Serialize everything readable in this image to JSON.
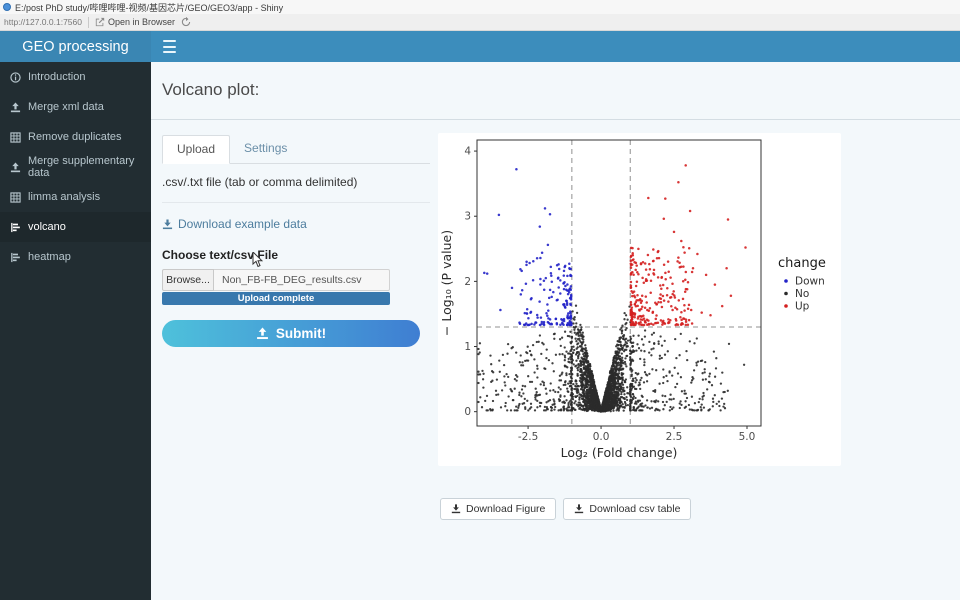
{
  "window": {
    "title": "E:/post PhD study/哔哩哔哩-视频/基因芯片/GEO/GEO3/app - Shiny",
    "icon": "shiny-app-icon"
  },
  "toolbar": {
    "url": "http://127.0.0.1:7560",
    "open_in_browser": "Open in Browser",
    "icons": [
      "external-arrow-icon",
      "refresh-icon"
    ]
  },
  "header": {
    "brand": "GEO processing",
    "icons": [
      "hamburger-menu-icon"
    ]
  },
  "sidebar": {
    "items": [
      {
        "icon": "info-icon",
        "label": "Introduction",
        "active": false
      },
      {
        "icon": "upload-icon",
        "label": "Merge xml data",
        "active": false
      },
      {
        "icon": "table-icon",
        "label": "Remove duplicates",
        "active": false
      },
      {
        "icon": "upload-icon",
        "label": "Merge supplementary data",
        "active": false
      },
      {
        "icon": "table-icon",
        "label": "limma analysis",
        "active": false
      },
      {
        "icon": "chart-icon",
        "label": "volcano",
        "active": true
      },
      {
        "icon": "chart-icon",
        "label": "heatmap",
        "active": false
      }
    ]
  },
  "main": {
    "title": "Volcano plot:",
    "tabs": [
      {
        "label": "Upload",
        "active": true
      },
      {
        "label": "Settings",
        "active": false
      }
    ],
    "upload_panel": {
      "file_hint": ".csv/.txt file (tab or comma delimited)",
      "download_example_label": "Download example data",
      "choose_file_label": "Choose text/csv File",
      "browse_label": "Browse...",
      "filename": "Non_FB-FB_DEG_results.csv",
      "upload_status": "Upload complete",
      "submit_label": "Submit!"
    },
    "footer_buttons": {
      "download_figure": "Download Figure",
      "download_csv": "Download csv table"
    }
  },
  "colors": {
    "header": "#3c8dbc",
    "logo_bg": "#3a86b3",
    "sidebar_bg": "#222d32",
    "sidebar_active": "#1e282c",
    "sidebar_text": "#b8c7ce",
    "progress": "#3878ad",
    "submit_from": "#4ec1db",
    "submit_to": "#3f7ed2",
    "link": "#4d7d9e",
    "content_bg": "#f3f8fb",
    "down": "#2323c8",
    "no": "#2b2b2b",
    "up": "#d42020"
  },
  "chart_data": {
    "type": "scatter",
    "title": "",
    "xlabel": "Log₂ (Fold change)",
    "ylabel": "− Log₁₀ (P value)",
    "xlim": [
      -4.25,
      5.48
    ],
    "ylim": [
      -0.22,
      4.17
    ],
    "x_ticks": {
      "values": [
        -2.5,
        0,
        2.5,
        5
      ],
      "labels": [
        "-2.5",
        "0.0",
        "2.5",
        "5.0"
      ]
    },
    "y_ticks": {
      "values": [
        0,
        1,
        2,
        3,
        4
      ],
      "labels": [
        "0",
        "1",
        "2",
        "3",
        "4"
      ]
    },
    "grid": false,
    "thresholds": {
      "vlines": [
        -1,
        1
      ],
      "hline": 1.3,
      "style": "dashed",
      "color": "#909090"
    },
    "legend": {
      "title": "change",
      "position": "right",
      "entries": [
        {
          "label": "Down",
          "color": "#2323c8"
        },
        {
          "label": "No",
          "color": "#2b2b2b"
        },
        {
          "label": "Up",
          "color": "#d42020"
        }
      ]
    },
    "seed": 1337,
    "series": [
      {
        "name": "No",
        "color": "#2b2b2b",
        "r": 1.15,
        "components": [
          {
            "kind": "vcore",
            "n": 2300,
            "xmax": 1.05,
            "slope": 1.9
          },
          {
            "kind": "cloud",
            "n": 620,
            "xmin": 1.0,
            "spread": 3.4,
            "xpow": 2.6,
            "ymax": 1.26,
            "ypow": 1.7,
            "neg_cap": 4.2,
            "pos_cap": 5.1
          }
        ],
        "extra": [
          [
            -4.15,
            1.05
          ],
          [
            -3.3,
            0.45
          ],
          [
            3.95,
            0.82
          ],
          [
            4.9,
            0.72
          ],
          [
            -2.6,
            0.78
          ],
          [
            -2.95,
            0.5
          ],
          [
            3.2,
            1.05
          ],
          [
            -3.6,
            0.32
          ],
          [
            3.55,
            0.65
          ],
          [
            -2.2,
            1.07
          ]
        ]
      },
      {
        "name": "Down",
        "color": "#2323c8",
        "r": 1.25,
        "components": [
          {
            "kind": "band",
            "n": 165,
            "sign": -1,
            "x0": 1.02,
            "xspread": 1.78,
            "xpow": 2.3,
            "y0": 1.33,
            "yspread": 1.05,
            "ypow": 2.1
          }
        ],
        "extra": [
          [
            -2.9,
            3.72
          ],
          [
            -3.5,
            3.02
          ],
          [
            -1.92,
            3.12
          ],
          [
            -1.75,
            3.03
          ],
          [
            -2.1,
            2.84
          ],
          [
            -1.82,
            2.56
          ],
          [
            -3.9,
            2.12
          ],
          [
            -2.32,
            2.31
          ],
          [
            -2.02,
            2.44
          ],
          [
            -2.55,
            2.3
          ],
          [
            -3.45,
            1.56
          ],
          [
            -2.75,
            1.8
          ],
          [
            -4.0,
            2.13
          ],
          [
            -3.05,
            1.9
          ]
        ]
      },
      {
        "name": "Up",
        "color": "#d42020",
        "r": 1.25,
        "components": [
          {
            "kind": "band",
            "n": 255,
            "sign": 1,
            "x0": 1.02,
            "xspread": 2.1,
            "xpow": 2.0,
            "y0": 1.33,
            "yspread": 1.2,
            "ypow": 1.9
          }
        ],
        "extra": [
          [
            2.9,
            3.78
          ],
          [
            2.65,
            3.52
          ],
          [
            2.2,
            3.27
          ],
          [
            1.62,
            3.28
          ],
          [
            3.05,
            3.08
          ],
          [
            4.35,
            2.95
          ],
          [
            2.15,
            2.96
          ],
          [
            4.95,
            2.52
          ],
          [
            4.3,
            2.2
          ],
          [
            4.45,
            1.78
          ],
          [
            3.6,
            2.1
          ],
          [
            3.3,
            2.42
          ],
          [
            2.75,
            2.62
          ],
          [
            3.9,
            1.95
          ],
          [
            4.15,
            1.62
          ],
          [
            3.45,
            1.52
          ],
          [
            2.5,
            2.76
          ],
          [
            3.15,
            2.2
          ],
          [
            3.75,
            1.48
          ],
          [
            2.95,
            1.88
          ]
        ]
      }
    ]
  }
}
